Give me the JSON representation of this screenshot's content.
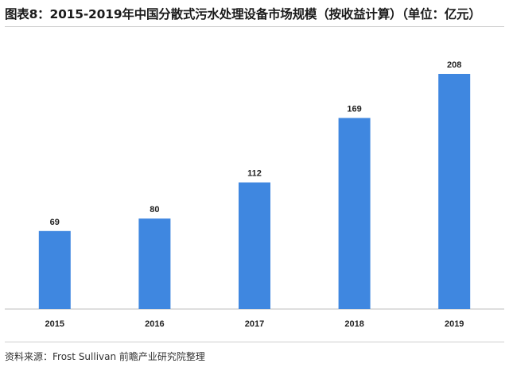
{
  "title": "图表8：2015-2019年中国分散式污水处理设备市场规模（按收益计算）（单位：亿元）",
  "source": "资料来源：Frost Sullivan 前瞻产业研究院整理",
  "chart_data": {
    "type": "bar",
    "categories": [
      "2015",
      "2016",
      "2017",
      "2018",
      "2019"
    ],
    "values": [
      69,
      80,
      112,
      169,
      208
    ],
    "title": "图表8：2015-2019年中国分散式污水处理设备市场规模（按收益计算）（单位：亿元）",
    "xlabel": "",
    "ylabel": "",
    "ylim": [
      0,
      215
    ],
    "grid": false,
    "legend": "none",
    "bar_color": "#3f87e0"
  }
}
